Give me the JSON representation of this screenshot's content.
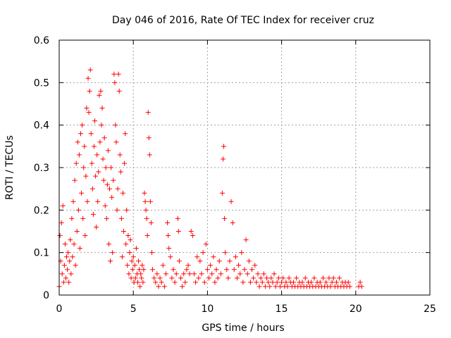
{
  "chart_data": {
    "type": "scatter",
    "title": "Day 046 of 2016, Rate Of TEC Index for receiver cruz",
    "xlabel": "GPS time / hours",
    "ylabel": "ROTI / TECUs",
    "xlim": [
      0,
      25
    ],
    "ylim": [
      0,
      0.6
    ],
    "xticks": [
      0,
      5,
      10,
      15,
      20,
      25
    ],
    "yticks": [
      0,
      0.1,
      0.2,
      0.3,
      0.4,
      0.5,
      0.6
    ],
    "xtick_labels": [
      "0",
      "5",
      "10",
      "15",
      "20",
      "25"
    ],
    "ytick_labels": [
      "0",
      "0.1",
      "0.2",
      "0.3",
      "0.4",
      "0.5",
      "0.6"
    ],
    "grid": true,
    "marker": "+",
    "series": [
      {
        "name": "ROTI",
        "color": "#ff0000",
        "points": [
          [
            0.0,
            0.02
          ],
          [
            0.05,
            0.14
          ],
          [
            0.1,
            0.08
          ],
          [
            0.15,
            0.17
          ],
          [
            0.2,
            0.05
          ],
          [
            0.25,
            0.21
          ],
          [
            0.3,
            0.03
          ],
          [
            0.35,
            0.07
          ],
          [
            0.4,
            0.12
          ],
          [
            0.45,
            0.04
          ],
          [
            0.5,
            0.09
          ],
          [
            0.55,
            0.06
          ],
          [
            0.6,
            0.1
          ],
          [
            0.65,
            0.03
          ],
          [
            0.7,
            0.08
          ],
          [
            0.75,
            0.13
          ],
          [
            0.8,
            0.05
          ],
          [
            0.85,
            0.18
          ],
          [
            0.9,
            0.09
          ],
          [
            0.95,
            0.22
          ],
          [
            1.0,
            0.12
          ],
          [
            1.05,
            0.27
          ],
          [
            1.1,
            0.07
          ],
          [
            1.15,
            0.31
          ],
          [
            1.2,
            0.15
          ],
          [
            1.25,
            0.36
          ],
          [
            1.3,
            0.2
          ],
          [
            1.35,
            0.33
          ],
          [
            1.4,
            0.11
          ],
          [
            1.45,
            0.38
          ],
          [
            1.5,
            0.24
          ],
          [
            1.55,
            0.4
          ],
          [
            1.6,
            0.18
          ],
          [
            1.65,
            0.3
          ],
          [
            1.7,
            0.35
          ],
          [
            1.75,
            0.14
          ],
          [
            1.8,
            0.28
          ],
          [
            1.85,
            0.44
          ],
          [
            1.9,
            0.22
          ],
          [
            1.95,
            0.51
          ],
          [
            2.0,
            0.43
          ],
          [
            2.05,
            0.48
          ],
          [
            2.1,
            0.53
          ],
          [
            2.15,
            0.38
          ],
          [
            2.2,
            0.31
          ],
          [
            2.25,
            0.25
          ],
          [
            2.3,
            0.19
          ],
          [
            2.35,
            0.35
          ],
          [
            2.4,
            0.41
          ],
          [
            2.45,
            0.28
          ],
          [
            2.5,
            0.16
          ],
          [
            2.55,
            0.33
          ],
          [
            2.6,
            0.22
          ],
          [
            2.65,
            0.29
          ],
          [
            2.7,
            0.47
          ],
          [
            2.75,
            0.36
          ],
          [
            2.8,
            0.48
          ],
          [
            2.85,
            0.4
          ],
          [
            2.9,
            0.44
          ],
          [
            2.95,
            0.32
          ],
          [
            3.0,
            0.27
          ],
          [
            3.05,
            0.37
          ],
          [
            3.1,
            0.21
          ],
          [
            3.15,
            0.3
          ],
          [
            3.2,
            0.18
          ],
          [
            3.25,
            0.26
          ],
          [
            3.3,
            0.34
          ],
          [
            3.35,
            0.12
          ],
          [
            3.4,
            0.25
          ],
          [
            3.45,
            0.08
          ],
          [
            3.5,
            0.3
          ],
          [
            3.55,
            0.23
          ],
          [
            3.6,
            0.1
          ],
          [
            3.65,
            0.27
          ],
          [
            3.7,
            0.52
          ],
          [
            3.75,
            0.5
          ],
          [
            3.8,
            0.4
          ],
          [
            3.85,
            0.36
          ],
          [
            3.9,
            0.2
          ],
          [
            3.95,
            0.25
          ],
          [
            4.0,
            0.52
          ],
          [
            4.05,
            0.48
          ],
          [
            4.1,
            0.33
          ],
          [
            4.15,
            0.29
          ],
          [
            4.2,
            0.18
          ],
          [
            4.25,
            0.09
          ],
          [
            4.3,
            0.24
          ],
          [
            4.35,
            0.15
          ],
          [
            4.4,
            0.31
          ],
          [
            4.45,
            0.38
          ],
          [
            4.5,
            0.12
          ],
          [
            4.55,
            0.2
          ],
          [
            4.6,
            0.07
          ],
          [
            4.65,
            0.14
          ],
          [
            4.7,
            0.05
          ],
          [
            4.75,
            0.1
          ],
          [
            4.8,
            0.13
          ],
          [
            4.85,
            0.04
          ],
          [
            4.9,
            0.08
          ],
          [
            4.95,
            0.06
          ],
          [
            5.0,
            0.09
          ],
          [
            5.05,
            0.03
          ],
          [
            5.1,
            0.07
          ],
          [
            5.15,
            0.04
          ],
          [
            5.2,
            0.11
          ],
          [
            5.25,
            0.05
          ],
          [
            5.3,
            0.03
          ],
          [
            5.35,
            0.08
          ],
          [
            5.4,
            0.06
          ],
          [
            5.45,
            0.02
          ],
          [
            5.5,
            0.05
          ],
          [
            5.55,
            0.04
          ],
          [
            5.6,
            0.07
          ],
          [
            5.65,
            0.03
          ],
          [
            5.7,
            0.06
          ],
          [
            5.75,
            0.24
          ],
          [
            5.8,
            0.22
          ],
          [
            5.85,
            0.2
          ],
          [
            5.9,
            0.18
          ],
          [
            5.95,
            0.14
          ],
          [
            6.0,
            0.43
          ],
          [
            6.05,
            0.37
          ],
          [
            6.1,
            0.33
          ],
          [
            6.15,
            0.22
          ],
          [
            6.2,
            0.17
          ],
          [
            6.25,
            0.1
          ],
          [
            6.3,
            0.06
          ],
          [
            6.4,
            0.04
          ],
          [
            6.5,
            0.03
          ],
          [
            6.6,
            0.05
          ],
          [
            6.7,
            0.02
          ],
          [
            6.8,
            0.04
          ],
          [
            6.9,
            0.03
          ],
          [
            7.0,
            0.07
          ],
          [
            7.1,
            0.02
          ],
          [
            7.2,
            0.05
          ],
          [
            7.3,
            0.17
          ],
          [
            7.35,
            0.14
          ],
          [
            7.4,
            0.11
          ],
          [
            7.5,
            0.09
          ],
          [
            7.6,
            0.04
          ],
          [
            7.7,
            0.06
          ],
          [
            7.8,
            0.03
          ],
          [
            7.9,
            0.05
          ],
          [
            8.0,
            0.18
          ],
          [
            8.05,
            0.15
          ],
          [
            8.1,
            0.08
          ],
          [
            8.2,
            0.04
          ],
          [
            8.3,
            0.02
          ],
          [
            8.4,
            0.05
          ],
          [
            8.5,
            0.03
          ],
          [
            8.6,
            0.06
          ],
          [
            8.7,
            0.07
          ],
          [
            8.8,
            0.05
          ],
          [
            8.9,
            0.15
          ],
          [
            9.0,
            0.14
          ],
          [
            9.1,
            0.05
          ],
          [
            9.2,
            0.03
          ],
          [
            9.3,
            0.09
          ],
          [
            9.4,
            0.04
          ],
          [
            9.5,
            0.08
          ],
          [
            9.6,
            0.05
          ],
          [
            9.7,
            0.1
          ],
          [
            9.8,
            0.03
          ],
          [
            9.9,
            0.12
          ],
          [
            10.0,
            0.06
          ],
          [
            10.1,
            0.04
          ],
          [
            10.2,
            0.07
          ],
          [
            10.3,
            0.05
          ],
          [
            10.4,
            0.09
          ],
          [
            10.5,
            0.03
          ],
          [
            10.6,
            0.06
          ],
          [
            10.7,
            0.04
          ],
          [
            10.8,
            0.08
          ],
          [
            10.9,
            0.05
          ],
          [
            11.0,
            0.24
          ],
          [
            11.05,
            0.32
          ],
          [
            11.1,
            0.35
          ],
          [
            11.15,
            0.18
          ],
          [
            11.2,
            0.1
          ],
          [
            11.3,
            0.06
          ],
          [
            11.4,
            0.04
          ],
          [
            11.5,
            0.08
          ],
          [
            11.6,
            0.22
          ],
          [
            11.7,
            0.17
          ],
          [
            11.8,
            0.06
          ],
          [
            11.9,
            0.09
          ],
          [
            12.0,
            0.04
          ],
          [
            12.1,
            0.07
          ],
          [
            12.2,
            0.05
          ],
          [
            12.3,
            0.1
          ],
          [
            12.4,
            0.03
          ],
          [
            12.5,
            0.06
          ],
          [
            12.6,
            0.13
          ],
          [
            12.7,
            0.05
          ],
          [
            12.8,
            0.08
          ],
          [
            12.9,
            0.03
          ],
          [
            13.0,
            0.06
          ],
          [
            13.1,
            0.04
          ],
          [
            13.2,
            0.07
          ],
          [
            13.3,
            0.03
          ],
          [
            13.4,
            0.05
          ],
          [
            13.5,
            0.02
          ],
          [
            13.6,
            0.04
          ],
          [
            13.7,
            0.03
          ],
          [
            13.8,
            0.05
          ],
          [
            13.9,
            0.02
          ],
          [
            14.0,
            0.04
          ],
          [
            14.1,
            0.03
          ],
          [
            14.2,
            0.02
          ],
          [
            14.3,
            0.04
          ],
          [
            14.4,
            0.03
          ],
          [
            14.5,
            0.05
          ],
          [
            14.6,
            0.02
          ],
          [
            14.7,
            0.03
          ],
          [
            14.8,
            0.04
          ],
          [
            14.9,
            0.02
          ],
          [
            15.0,
            0.03
          ],
          [
            15.1,
            0.04
          ],
          [
            15.2,
            0.02
          ],
          [
            15.3,
            0.03
          ],
          [
            15.4,
            0.02
          ],
          [
            15.5,
            0.04
          ],
          [
            15.6,
            0.03
          ],
          [
            15.7,
            0.02
          ],
          [
            15.8,
            0.03
          ],
          [
            15.9,
            0.02
          ],
          [
            16.0,
            0.04
          ],
          [
            16.1,
            0.02
          ],
          [
            16.2,
            0.03
          ],
          [
            16.3,
            0.02
          ],
          [
            16.4,
            0.03
          ],
          [
            16.5,
            0.02
          ],
          [
            16.6,
            0.04
          ],
          [
            16.7,
            0.02
          ],
          [
            16.8,
            0.03
          ],
          [
            16.9,
            0.02
          ],
          [
            17.0,
            0.03
          ],
          [
            17.1,
            0.02
          ],
          [
            17.2,
            0.04
          ],
          [
            17.3,
            0.02
          ],
          [
            17.4,
            0.03
          ],
          [
            17.5,
            0.02
          ],
          [
            17.6,
            0.03
          ],
          [
            17.7,
            0.02
          ],
          [
            17.8,
            0.04
          ],
          [
            17.9,
            0.02
          ],
          [
            18.0,
            0.03
          ],
          [
            18.1,
            0.02
          ],
          [
            18.2,
            0.04
          ],
          [
            18.3,
            0.02
          ],
          [
            18.4,
            0.03
          ],
          [
            18.5,
            0.04
          ],
          [
            18.6,
            0.02
          ],
          [
            18.7,
            0.03
          ],
          [
            18.8,
            0.02
          ],
          [
            18.9,
            0.04
          ],
          [
            19.0,
            0.02
          ],
          [
            19.1,
            0.03
          ],
          [
            19.2,
            0.02
          ],
          [
            19.3,
            0.03
          ],
          [
            19.4,
            0.02
          ],
          [
            19.5,
            0.03
          ],
          [
            19.6,
            0.02
          ],
          [
            20.2,
            0.02
          ],
          [
            20.3,
            0.03
          ],
          [
            20.4,
            0.02
          ]
        ]
      }
    ]
  }
}
